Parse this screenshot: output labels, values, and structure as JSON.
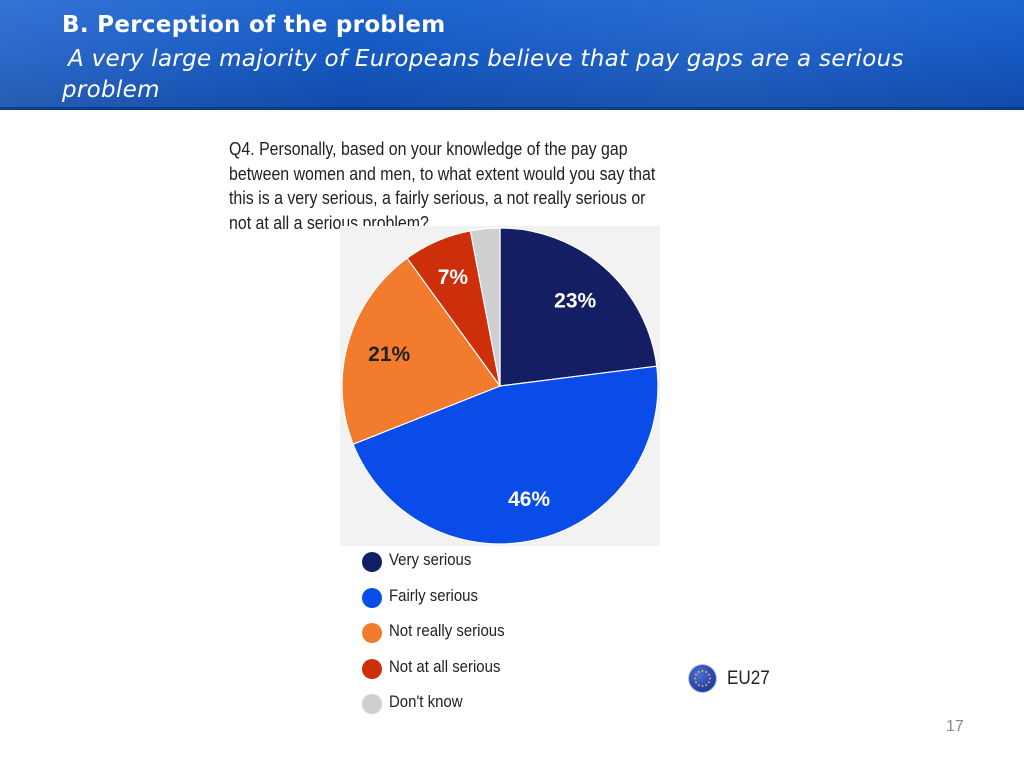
{
  "header": {
    "title": "B. Perception of the problem",
    "subtitle": "A very large majority of Europeans believe that pay gaps are a serious problem"
  },
  "chart_data": {
    "type": "pie",
    "title": "Q4. Personally, based on your knowledge of the pay gap between women and men, to what extent would you say that this is a very serious, a fairly serious, a not really serious or not at all a serious problem?",
    "slices": [
      {
        "label": "Very serious",
        "value": 23,
        "display": "23%",
        "color": "#141f63",
        "label_color": "#ffffff"
      },
      {
        "label": "Fairly serious",
        "value": 46,
        "display": "46%",
        "color": "#0a4ce8",
        "label_color": "#ffffff"
      },
      {
        "label": "Not really serious",
        "value": 21,
        "display": "21%",
        "color": "#f37b2d",
        "label_color": "#222222"
      },
      {
        "label": "Not at all serious",
        "value": 7,
        "display": "7%",
        "color": "#cc2f0a",
        "label_color": "#ffffff"
      },
      {
        "label": "Don't know",
        "value": 3,
        "display": "",
        "color": "#cfcfcf",
        "label_color": "#222222"
      }
    ],
    "legend_position": "bottom-left"
  },
  "badge": {
    "label": "EU27",
    "icon": "eu-flag-icon"
  },
  "page_number": "17"
}
